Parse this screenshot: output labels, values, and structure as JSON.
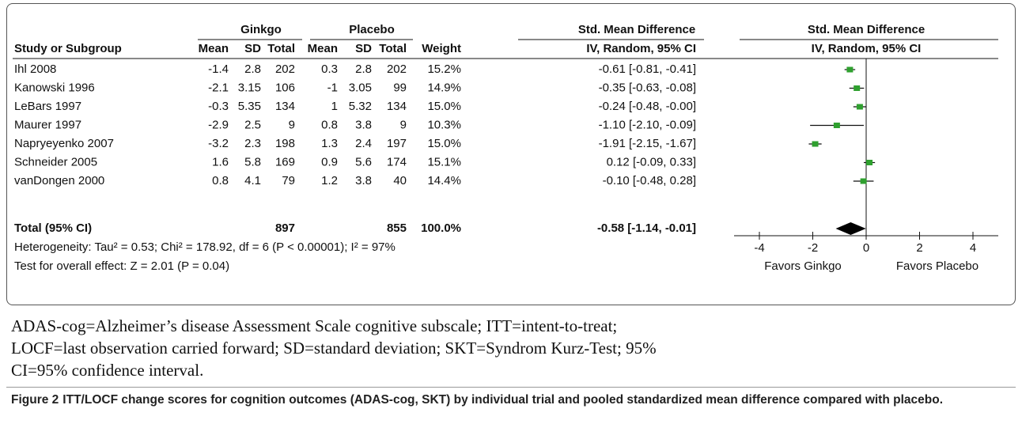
{
  "table": {
    "group_headers": [
      "Ginkgo",
      "Placebo",
      "Std. Mean Difference"
    ],
    "columns": [
      "Study or Subgroup",
      "Mean",
      "SD",
      "Total",
      "Mean",
      "SD",
      "Total",
      "Weight",
      "IV, Random, 95% CI"
    ],
    "rows": [
      [
        "Ihl 2008",
        "-1.4",
        "2.8",
        "202",
        "0.3",
        "2.8",
        "202",
        "15.2%",
        "-0.61 [-0.81, -0.41]"
      ],
      [
        "Kanowski 1996",
        "-2.1",
        "3.15",
        "106",
        "-1",
        "3.05",
        "99",
        "14.9%",
        "-0.35 [-0.63, -0.08]"
      ],
      [
        "LeBars 1997",
        "-0.3",
        "5.35",
        "134",
        "1",
        "5.32",
        "134",
        "15.0%",
        "-0.24 [-0.48, -0.00]"
      ],
      [
        "Maurer 1997",
        "-2.9",
        "2.5",
        "9",
        "0.8",
        "3.8",
        "9",
        "10.3%",
        "-1.10 [-2.10, -0.09]"
      ],
      [
        "Napryeyenko 2007",
        "-3.2",
        "2.3",
        "198",
        "1.3",
        "2.4",
        "197",
        "15.0%",
        "-1.91 [-2.15, -1.67]"
      ],
      [
        "Schneider 2005",
        "1.6",
        "5.8",
        "169",
        "0.9",
        "5.6",
        "174",
        "15.1%",
        "0.12 [-0.09, 0.33]"
      ],
      [
        "vanDongen 2000",
        "0.8",
        "4.1",
        "79",
        "1.2",
        "3.8",
        "40",
        "14.4%",
        "-0.10 [-0.48, 0.28]"
      ]
    ],
    "total": {
      "label": "Total (95% CI)",
      "ginkgo_total": "897",
      "placebo_total": "855",
      "weight": "100.0%",
      "ci": "-0.58 [-1.14, -0.01]"
    },
    "heterogeneity": "Heterogeneity: Tau² = 0.53; Chi² = 178.92, df = 6 (P < 0.00001); I² = 97%",
    "overall_effect": "Test for overall effect: Z = 2.01 (P = 0.04)"
  },
  "forest": {
    "header": [
      "Std. Mean Difference",
      "IV, Random, 95% CI"
    ],
    "studies": [
      {
        "est": -0.61,
        "lo": -0.81,
        "hi": -0.41
      },
      {
        "est": -0.35,
        "lo": -0.63,
        "hi": -0.08
      },
      {
        "est": -0.24,
        "lo": -0.48,
        "hi": 0.0
      },
      {
        "est": -1.1,
        "lo": -2.1,
        "hi": -0.09
      },
      {
        "est": -1.91,
        "lo": -2.15,
        "hi": -1.67
      },
      {
        "est": 0.12,
        "lo": -0.09,
        "hi": 0.33
      },
      {
        "est": -0.1,
        "lo": -0.48,
        "hi": 0.28
      }
    ],
    "total": {
      "est": -0.58,
      "lo": -1.14,
      "hi": -0.01
    },
    "xlim": [
      -4,
      4
    ],
    "xticks": [
      -4,
      -2,
      0,
      2,
      4
    ],
    "left_label": "Favors Ginkgo",
    "right_label": "Favors Placebo",
    "marker_color": "#2fa02f",
    "diamond_color": "#000000"
  },
  "notes": [
    "ADAS-cog=Alzheimer’s disease Assessment Scale cognitive subscale; ITT=intent-to-treat;",
    "LOCF=last observation carried forward; SD=standard deviation; SKT=Syndrom Kurz-Test; 95%",
    "CI=95% confidence interval."
  ],
  "caption": {
    "label": "Figure 2",
    "text": "ITT/LOCF change scores for cognition outcomes (ADAS-cog, SKT) by individual trial and pooled standardized mean difference compared with placebo."
  }
}
